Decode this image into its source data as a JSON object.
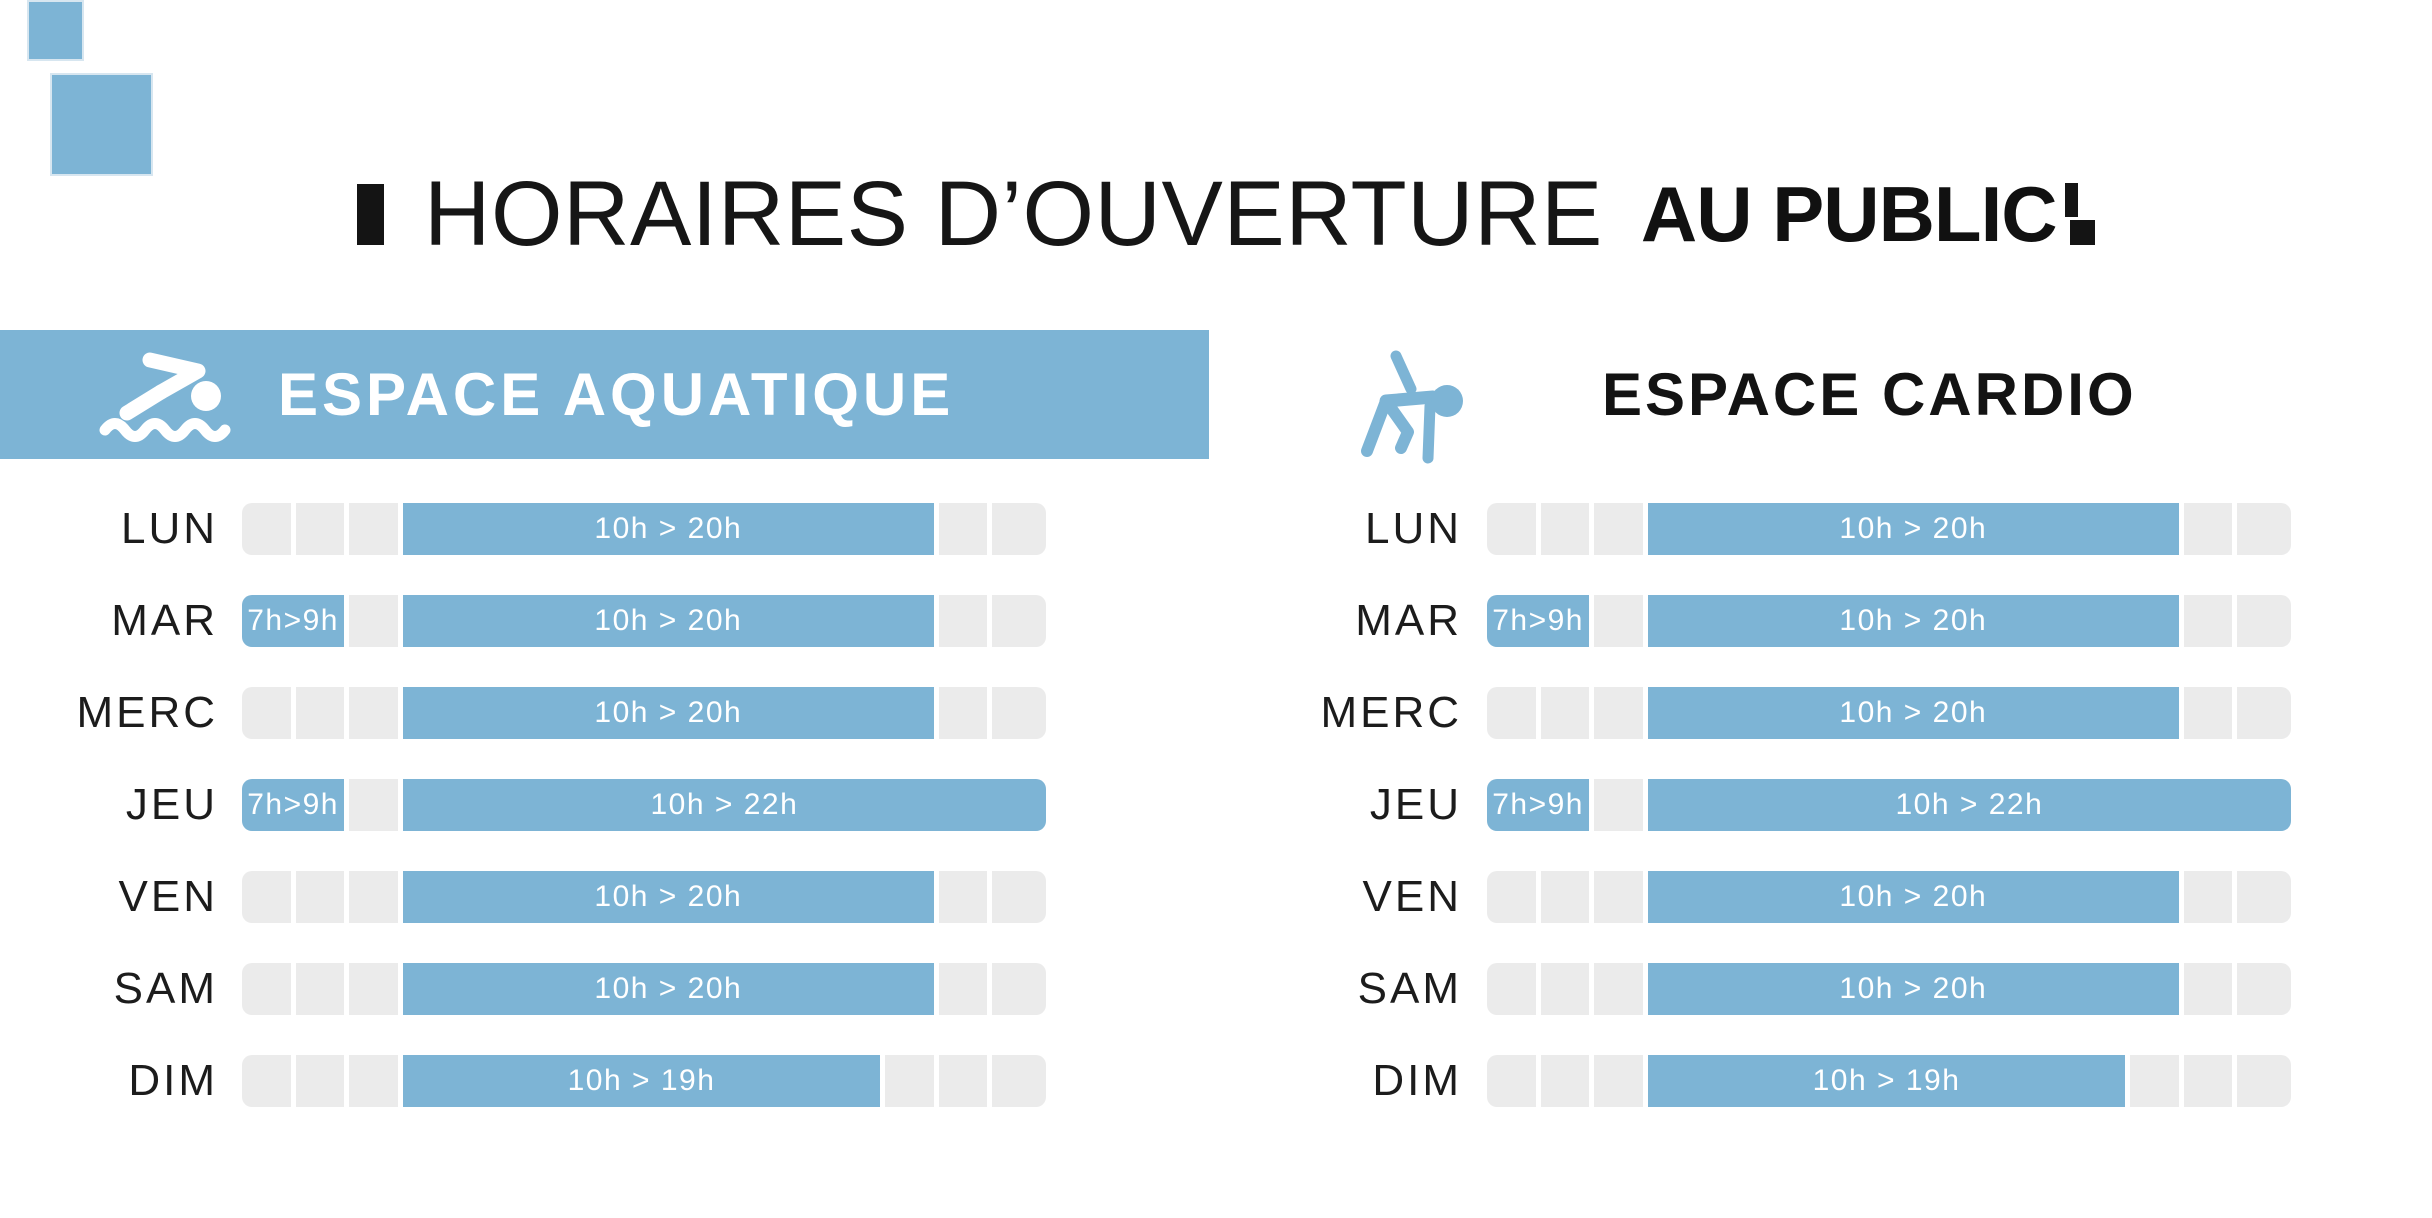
{
  "colors": {
    "accent_blue": "#7db4d5",
    "closed_gray": "#ebebeb",
    "text_dark": "#161616",
    "white": "#ffffff"
  },
  "title": {
    "main": "HORAIRES D’OUVERTURE",
    "emphasis": "AU PUBLIC"
  },
  "hours_axis": {
    "start": 7,
    "end": 22
  },
  "sections": [
    {
      "id": "aquatique",
      "title": "ESPACE AQUATIQUE",
      "icon": "swimmer-icon",
      "rows": [
        {
          "day": "LUN",
          "segments": [
            {
              "state": "closed",
              "from": 7,
              "to": 10
            },
            {
              "state": "open",
              "from": 10,
              "to": 20,
              "label": "10h > 20h"
            },
            {
              "state": "closed",
              "from": 20,
              "to": 22
            }
          ]
        },
        {
          "day": "MAR",
          "segments": [
            {
              "state": "open",
              "from": 7,
              "to": 9,
              "label": "7h>9h"
            },
            {
              "state": "closed",
              "from": 9,
              "to": 10
            },
            {
              "state": "open",
              "from": 10,
              "to": 20,
              "label": "10h > 20h"
            },
            {
              "state": "closed",
              "from": 20,
              "to": 22
            }
          ]
        },
        {
          "day": "MERC",
          "segments": [
            {
              "state": "closed",
              "from": 7,
              "to": 10
            },
            {
              "state": "open",
              "from": 10,
              "to": 20,
              "label": "10h > 20h"
            },
            {
              "state": "closed",
              "from": 20,
              "to": 22
            }
          ]
        },
        {
          "day": "JEU",
          "segments": [
            {
              "state": "open",
              "from": 7,
              "to": 9,
              "label": "7h>9h"
            },
            {
              "state": "closed",
              "from": 9,
              "to": 10
            },
            {
              "state": "open",
              "from": 10,
              "to": 22,
              "label": "10h > 22h"
            }
          ]
        },
        {
          "day": "VEN",
          "segments": [
            {
              "state": "closed",
              "from": 7,
              "to": 10
            },
            {
              "state": "open",
              "from": 10,
              "to": 20,
              "label": "10h > 20h"
            },
            {
              "state": "closed",
              "from": 20,
              "to": 22
            }
          ]
        },
        {
          "day": "SAM",
          "segments": [
            {
              "state": "closed",
              "from": 7,
              "to": 10
            },
            {
              "state": "open",
              "from": 10,
              "to": 20,
              "label": "10h > 20h"
            },
            {
              "state": "closed",
              "from": 20,
              "to": 22
            }
          ]
        },
        {
          "day": "DIM",
          "segments": [
            {
              "state": "closed",
              "from": 7,
              "to": 10
            },
            {
              "state": "open",
              "from": 10,
              "to": 19,
              "label": "10h > 19h"
            },
            {
              "state": "closed",
              "from": 19,
              "to": 22
            }
          ]
        }
      ]
    },
    {
      "id": "cardio",
      "title": "ESPACE CARDIO",
      "icon": "stretching-person-icon",
      "rows": [
        {
          "day": "LUN",
          "segments": [
            {
              "state": "closed",
              "from": 7,
              "to": 10
            },
            {
              "state": "open",
              "from": 10,
              "to": 20,
              "label": "10h > 20h"
            },
            {
              "state": "closed",
              "from": 20,
              "to": 22
            }
          ]
        },
        {
          "day": "MAR",
          "segments": [
            {
              "state": "open",
              "from": 7,
              "to": 9,
              "label": "7h>9h"
            },
            {
              "state": "closed",
              "from": 9,
              "to": 10
            },
            {
              "state": "open",
              "from": 10,
              "to": 20,
              "label": "10h > 20h"
            },
            {
              "state": "closed",
              "from": 20,
              "to": 22
            }
          ]
        },
        {
          "day": "MERC",
          "segments": [
            {
              "state": "closed",
              "from": 7,
              "to": 10
            },
            {
              "state": "open",
              "from": 10,
              "to": 20,
              "label": "10h > 20h"
            },
            {
              "state": "closed",
              "from": 20,
              "to": 22
            }
          ]
        },
        {
          "day": "JEU",
          "segments": [
            {
              "state": "open",
              "from": 7,
              "to": 9,
              "label": "7h>9h"
            },
            {
              "state": "closed",
              "from": 9,
              "to": 10
            },
            {
              "state": "open",
              "from": 10,
              "to": 22,
              "label": "10h > 22h"
            }
          ]
        },
        {
          "day": "VEN",
          "segments": [
            {
              "state": "closed",
              "from": 7,
              "to": 10
            },
            {
              "state": "open",
              "from": 10,
              "to": 20,
              "label": "10h > 20h"
            },
            {
              "state": "closed",
              "from": 20,
              "to": 22
            }
          ]
        },
        {
          "day": "SAM",
          "segments": [
            {
              "state": "closed",
              "from": 7,
              "to": 10
            },
            {
              "state": "open",
              "from": 10,
              "to": 20,
              "label": "10h > 20h"
            },
            {
              "state": "closed",
              "from": 20,
              "to": 22
            }
          ]
        },
        {
          "day": "DIM",
          "segments": [
            {
              "state": "closed",
              "from": 7,
              "to": 10
            },
            {
              "state": "open",
              "from": 10,
              "to": 19,
              "label": "10h > 19h"
            },
            {
              "state": "closed",
              "from": 19,
              "to": 22
            }
          ]
        }
      ]
    }
  ],
  "chart_data": {
    "type": "bar",
    "subtype": "weekly-schedule-gantt",
    "title": "HORAIRES D’OUVERTURE AU PUBLIC",
    "x_axis_hours_range": [
      7,
      22
    ],
    "categories": [
      "LUN",
      "MAR",
      "MERC",
      "JEU",
      "VEN",
      "SAM",
      "DIM"
    ],
    "series": [
      {
        "name": "ESPACE AQUATIQUE",
        "open_hours": {
          "LUN": [
            [
              10,
              20
            ]
          ],
          "MAR": [
            [
              7,
              9
            ],
            [
              10,
              20
            ]
          ],
          "MERC": [
            [
              10,
              20
            ]
          ],
          "JEU": [
            [
              7,
              9
            ],
            [
              10,
              22
            ]
          ],
          "VEN": [
            [
              10,
              20
            ]
          ],
          "SAM": [
            [
              10,
              20
            ]
          ],
          "DIM": [
            [
              10,
              19
            ]
          ]
        }
      },
      {
        "name": "ESPACE CARDIO",
        "open_hours": {
          "LUN": [
            [
              10,
              20
            ]
          ],
          "MAR": [
            [
              7,
              9
            ],
            [
              10,
              20
            ]
          ],
          "MERC": [
            [
              10,
              20
            ]
          ],
          "JEU": [
            [
              7,
              9
            ],
            [
              10,
              22
            ]
          ],
          "VEN": [
            [
              10,
              20
            ]
          ],
          "SAM": [
            [
              10,
              20
            ]
          ],
          "DIM": [
            [
              10,
              19
            ]
          ]
        }
      }
    ],
    "bar_labels": [
      "7h>9h",
      "10h > 20h",
      "10h > 22h",
      "10h > 19h"
    ],
    "legend": "none",
    "grid": "off"
  }
}
